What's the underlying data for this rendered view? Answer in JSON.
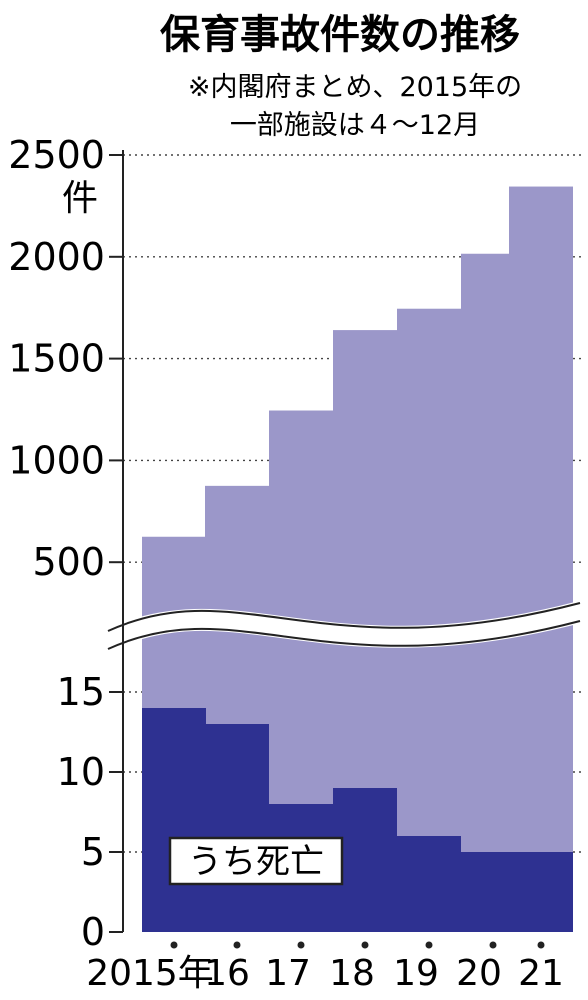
{
  "chart_data": {
    "type": "bar",
    "title": "保育事故件数の推移",
    "subtitle": [
      "※内閣府まとめ、2015年の",
      "一部施設は４～12月"
    ],
    "unit": "件",
    "categories": [
      "2015年",
      "16",
      "17",
      "18",
      "19",
      "20",
      "21"
    ],
    "broken_axis": true,
    "upper_axis": {
      "ylim": [
        0,
        2500
      ],
      "ticks": [
        "2500",
        "2000",
        "1500",
        "1000",
        "500"
      ]
    },
    "lower_axis": {
      "ylim": [
        0,
        20
      ],
      "ticks": [
        "15",
        "10",
        "5",
        "0"
      ]
    },
    "grid": true,
    "series": [
      {
        "name": "",
        "values": [
          625,
          875,
          1245,
          1640,
          1745,
          2015,
          2345
        ],
        "color": "#9b97c9"
      },
      {
        "name": "うち死亡",
        "values": [
          14,
          13,
          8,
          9,
          6,
          5,
          5
        ],
        "color": "#2e3191"
      }
    ],
    "legend": {
      "label": "うち死亡",
      "placement": "bottom-left"
    }
  }
}
